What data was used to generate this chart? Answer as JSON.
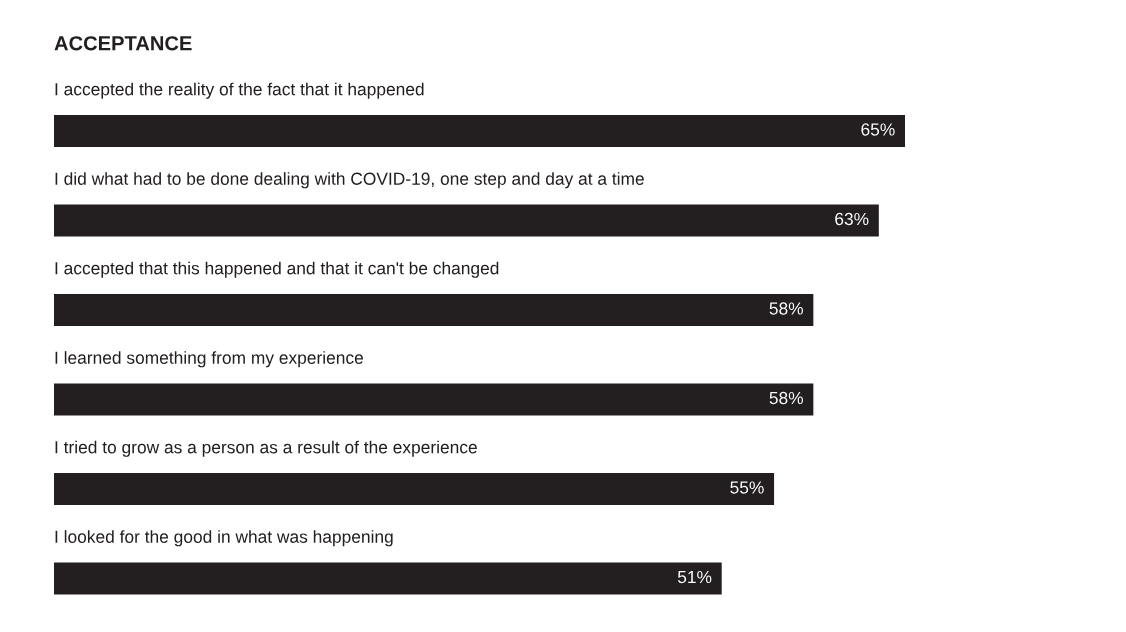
{
  "chart_data": {
    "type": "bar",
    "orientation": "horizontal",
    "title": "ACCEPTANCE",
    "categories": [
      "I accepted the reality of the fact that it happened",
      "I did what had to be done dealing with COVID-19, one step and day at a time",
      "I accepted that this happened and that it can't be changed",
      "I learned something from my experience",
      "I tried to grow as a person as a result of the experience",
      "I looked for the good in what was happening"
    ],
    "values": [
      65,
      63,
      58,
      58,
      55,
      51
    ],
    "value_labels": [
      "65%",
      "63%",
      "58%",
      "58%",
      "55%",
      "51%"
    ],
    "color": "#231f20"
  }
}
